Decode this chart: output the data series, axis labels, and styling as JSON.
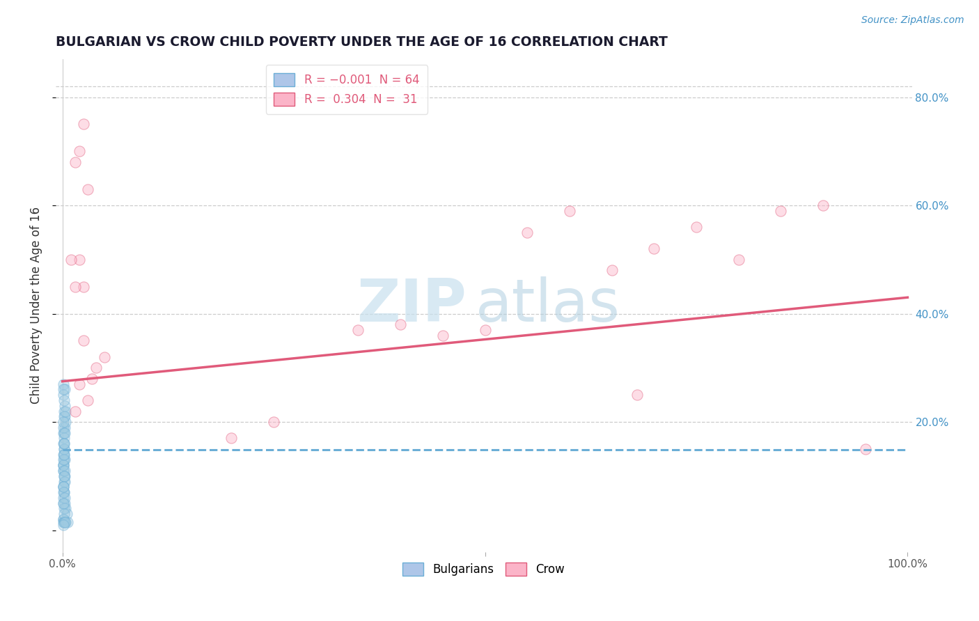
{
  "title": "BULGARIAN VS CROW CHILD POVERTY UNDER THE AGE OF 16 CORRELATION CHART",
  "source_text": "Source: ZipAtlas.com",
  "ylabel": "Child Poverty Under the Age of 16",
  "xlim": [
    -0.008,
    1.005
  ],
  "ylim": [
    -0.04,
    0.87
  ],
  "ytick_right": [
    0.2,
    0.4,
    0.6,
    0.8
  ],
  "ytick_right_labels": [
    "20.0%",
    "40.0%",
    "60.0%",
    "80.0%"
  ],
  "watermark_zip": "ZIP",
  "watermark_atlas": "atlas",
  "watermark_color_zip": "#c8e0ee",
  "watermark_color_atlas": "#b0cfe0",
  "bulgarian_x": [
    0.001,
    0.002,
    0.0015,
    0.003,
    0.001,
    0.002,
    0.003,
    0.001,
    0.002,
    0.001,
    0.001,
    0.003,
    0.002,
    0.001,
    0.002,
    0.001,
    0.003,
    0.004,
    0.005,
    0.001,
    0.002,
    0.001,
    0.003,
    0.002,
    0.001,
    0.004,
    0.002,
    0.003,
    0.001,
    0.002,
    0.001,
    0.002,
    0.003,
    0.001,
    0.002,
    0.001,
    0.002,
    0.003,
    0.001,
    0.002,
    0.001,
    0.003,
    0.002,
    0.001,
    0.002,
    0.003,
    0.001,
    0.004,
    0.002,
    0.001,
    0.002,
    0.001,
    0.003,
    0.002,
    0.001,
    0.006,
    0.002,
    0.001,
    0.002,
    0.003,
    0.001,
    0.002,
    0.004,
    0.001
  ],
  "bulgarian_y": [
    0.27,
    0.22,
    0.05,
    0.26,
    0.12,
    0.13,
    0.19,
    0.18,
    0.14,
    0.12,
    0.11,
    0.1,
    0.09,
    0.08,
    0.07,
    0.06,
    0.05,
    0.04,
    0.03,
    0.02,
    0.15,
    0.16,
    0.21,
    0.18,
    0.19,
    0.2,
    0.21,
    0.13,
    0.11,
    0.17,
    0.14,
    0.1,
    0.09,
    0.08,
    0.07,
    0.12,
    0.15,
    0.23,
    0.25,
    0.16,
    0.13,
    0.11,
    0.14,
    0.07,
    0.16,
    0.18,
    0.2,
    0.22,
    0.24,
    0.26,
    0.1,
    0.08,
    0.06,
    0.04,
    0.02,
    0.015,
    0.015,
    0.015,
    0.015,
    0.015,
    0.05,
    0.03,
    0.015,
    0.01
  ],
  "crow_x": [
    0.02,
    0.025,
    0.015,
    0.03,
    0.04,
    0.05,
    0.035,
    0.025,
    0.015,
    0.02,
    0.03,
    0.02,
    0.025,
    0.01,
    0.015,
    0.5,
    0.6,
    0.65,
    0.7,
    0.75,
    0.8,
    0.85,
    0.9,
    0.95,
    0.35,
    0.4,
    0.45,
    0.2,
    0.25,
    0.55,
    0.68
  ],
  "crow_y": [
    0.5,
    0.45,
    0.68,
    0.63,
    0.3,
    0.32,
    0.28,
    0.35,
    0.22,
    0.27,
    0.24,
    0.7,
    0.75,
    0.5,
    0.45,
    0.37,
    0.59,
    0.48,
    0.52,
    0.56,
    0.5,
    0.59,
    0.6,
    0.15,
    0.37,
    0.38,
    0.36,
    0.17,
    0.2,
    0.55,
    0.25
  ],
  "bg_dot_color": "#9ecae1",
  "bg_dot_edge": "#6baed6",
  "crow_dot_color": "#fbb4c8",
  "crow_dot_edge": "#e05a7a",
  "bg_line_color": "#6baed6",
  "crow_line_color": "#e05a7a",
  "grid_color": "#cccccc",
  "bg_color": "#ffffff",
  "title_color": "#1a1a2e",
  "title_fontsize": 13.5,
  "axis_label_fontsize": 12,
  "tick_fontsize": 11,
  "dot_size": 120,
  "dot_alpha": 0.45,
  "bulgarian_regression_intercept": 0.148,
  "bulgarian_regression_slope": 0.0,
  "crow_regression_intercept": 0.275,
  "crow_regression_slope": 0.155
}
